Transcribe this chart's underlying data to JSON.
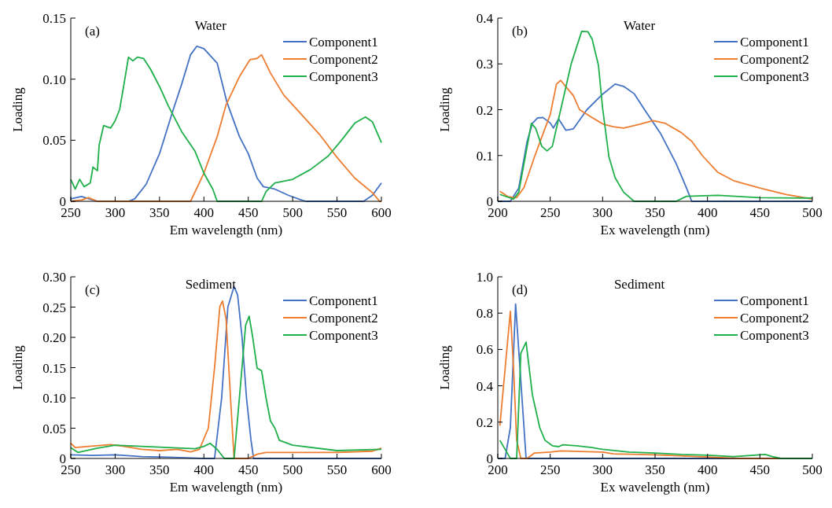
{
  "chart_data": [
    {
      "type": "line",
      "title": "Water",
      "xlabel": "Em wavelength (nm)",
      "ylabel": "Loading",
      "annotations": [
        "(a)"
      ],
      "xlim": [
        250,
        600
      ],
      "xticks": [
        250,
        300,
        350,
        400,
        450,
        500,
        550,
        600
      ],
      "ylim": [
        0,
        0.15
      ],
      "yticks": [
        0,
        0.05,
        {
          "value": 0.1,
          "label": "0.10"
        },
        0.15
      ],
      "grid": false,
      "legend": "top right",
      "series": [
        {
          "name": "Component1",
          "color": "#4472c4",
          "x": [
            250,
            262,
            275,
            280,
            315,
            322,
            335,
            350,
            365,
            375,
            385,
            392,
            400,
            415,
            426,
            440,
            450,
            460,
            467,
            480,
            495,
            510,
            515,
            580,
            590,
            600
          ],
          "values": [
            0.002,
            0.004,
            0.001,
            0,
            0,
            0.002,
            0.014,
            0.039,
            0.074,
            0.096,
            0.12,
            0.127,
            0.125,
            0.113,
            0.081,
            0.053,
            0.039,
            0.019,
            0.012,
            0.01,
            0.005,
            0.001,
            0,
            0,
            0.005,
            0.015
          ]
        },
        {
          "name": "Component2",
          "color": "#ed7d31",
          "x": [
            250,
            262,
            270,
            280,
            385,
            400,
            415,
            425,
            440,
            452,
            460,
            465,
            475,
            490,
            510,
            530,
            550,
            570,
            590,
            598,
            600
          ],
          "values": [
            0,
            0.001,
            0.003,
            0,
            0,
            0.023,
            0.053,
            0.079,
            0.102,
            0.116,
            0.117,
            0.12,
            0.105,
            0.087,
            0.071,
            0.055,
            0.036,
            0.019,
            0.007,
            0,
            0
          ]
        },
        {
          "name": "Component3",
          "color": "#1fb04b",
          "x": [
            250,
            255,
            260,
            265,
            272,
            275,
            280,
            282,
            287,
            295,
            300,
            305,
            310,
            315,
            320,
            325,
            332,
            340,
            350,
            360,
            375,
            390,
            400,
            410,
            415,
            465,
            470,
            480,
            500,
            520,
            540,
            555,
            570,
            582,
            590,
            600
          ],
          "values": [
            0.018,
            0.01,
            0.018,
            0.012,
            0.015,
            0.028,
            0.025,
            0.046,
            0.062,
            0.06,
            0.066,
            0.075,
            0.096,
            0.118,
            0.115,
            0.118,
            0.117,
            0.108,
            0.094,
            0.078,
            0.057,
            0.041,
            0.023,
            0.01,
            0,
            0,
            0.008,
            0.015,
            0.018,
            0.026,
            0.037,
            0.05,
            0.064,
            0.069,
            0.065,
            0.048
          ]
        }
      ]
    },
    {
      "type": "line",
      "title": "Water",
      "xlabel": "Ex wavelength (nm)",
      "ylabel": "Loading",
      "annotations": [
        "(b)"
      ],
      "xlim": [
        200,
        500
      ],
      "xticks": [
        200,
        250,
        300,
        350,
        400,
        450,
        500
      ],
      "ylim": [
        0,
        0.4
      ],
      "yticks": [
        0,
        0.1,
        0.2,
        0.3,
        0.4
      ],
      "grid": false,
      "legend": "top right",
      "series": [
        {
          "name": "Component1",
          "color": "#4472c4",
          "x": [
            200,
            212,
            220,
            228,
            233,
            238,
            243,
            250,
            253,
            258,
            265,
            272,
            285,
            300,
            312,
            320,
            330,
            340,
            355,
            370,
            380,
            385,
            500
          ],
          "values": [
            0,
            0,
            0.029,
            0.131,
            0.17,
            0.182,
            0.183,
            0.171,
            0.16,
            0.18,
            0.155,
            0.158,
            0.2,
            0.234,
            0.256,
            0.251,
            0.235,
            0.2,
            0.149,
            0.083,
            0.029,
            0,
            0
          ]
        },
        {
          "name": "Component2",
          "color": "#ed7d31",
          "x": [
            202,
            210,
            218,
            225,
            235,
            245,
            250,
            256,
            260,
            265,
            272,
            278,
            290,
            300,
            310,
            320,
            335,
            348,
            360,
            375,
            385,
            395,
            410,
            425,
            450,
            475,
            500
          ],
          "values": [
            0.022,
            0.01,
            0.008,
            0.03,
            0.097,
            0.159,
            0.189,
            0.256,
            0.264,
            0.25,
            0.231,
            0.2,
            0.183,
            0.169,
            0.163,
            0.16,
            0.168,
            0.176,
            0.17,
            0.15,
            0.131,
            0.1,
            0.063,
            0.045,
            0.029,
            0.015,
            0.005
          ]
        },
        {
          "name": "Component3",
          "color": "#1fb04b",
          "x": [
            202,
            215,
            220,
            232,
            236,
            242,
            247,
            252,
            260,
            270,
            280,
            286,
            290,
            296,
            300,
            306,
            312,
            320,
            330,
            370,
            380,
            410,
            450,
            500
          ],
          "values": [
            0.015,
            0.005,
            0.02,
            0.17,
            0.16,
            0.12,
            0.11,
            0.12,
            0.2,
            0.3,
            0.371,
            0.37,
            0.354,
            0.297,
            0.203,
            0.097,
            0.051,
            0.02,
            0,
            0,
            0.011,
            0.013,
            0.008,
            0.007
          ]
        }
      ]
    },
    {
      "type": "line",
      "title": "Sediment",
      "xlabel": "Em wavelength (nm)",
      "ylabel": "Loading",
      "annotations": [
        "(c)"
      ],
      "xlim": [
        250,
        600
      ],
      "xticks": [
        250,
        300,
        350,
        400,
        450,
        500,
        550,
        600
      ],
      "ylim": [
        0,
        0.3
      ],
      "yticks": [
        0,
        0.05,
        {
          "value": 0.1,
          "label": "0.10"
        },
        0.15,
        {
          "value": 0.2,
          "label": "0.20"
        },
        0.25,
        {
          "value": 0.3,
          "label": "0.30"
        }
      ],
      "grid": false,
      "legend": "top right",
      "series": [
        {
          "name": "Component1",
          "color": "#4472c4",
          "x": [
            250,
            275,
            300,
            330,
            360,
            400,
            412,
            420,
            427,
            434,
            438,
            443,
            448,
            453,
            456,
            600
          ],
          "values": [
            0.006,
            0.005,
            0.006,
            0.003,
            0.002,
            0,
            0,
            0.1,
            0.25,
            0.284,
            0.27,
            0.2,
            0.1,
            0.031,
            0,
            0
          ]
        },
        {
          "name": "Component2",
          "color": "#ed7d31",
          "x": [
            250,
            255,
            270,
            295,
            310,
            330,
            350,
            370,
            385,
            395,
            405,
            412,
            418,
            421,
            425,
            430,
            434,
            450,
            460,
            470,
            500,
            550,
            590,
            600
          ],
          "values": [
            0.025,
            0.018,
            0.02,
            0.023,
            0.02,
            0.015,
            0.013,
            0.015,
            0.011,
            0.015,
            0.05,
            0.15,
            0.251,
            0.26,
            0.23,
            0.1,
            0,
            0,
            0.007,
            0.01,
            0.01,
            0.01,
            0.012,
            0.017
          ]
        },
        {
          "name": "Component3",
          "color": "#1fb04b",
          "x": [
            250,
            258,
            280,
            300,
            330,
            360,
            390,
            400,
            407,
            415,
            423,
            434,
            440,
            447,
            451,
            455,
            460,
            465,
            470,
            475,
            480,
            485,
            500,
            550,
            600
          ],
          "values": [
            0.018,
            0.01,
            0.017,
            0.022,
            0.02,
            0.018,
            0.016,
            0.02,
            0.025,
            0.015,
            0,
            0,
            0.1,
            0.22,
            0.235,
            0.2,
            0.149,
            0.145,
            0.1,
            0.062,
            0.05,
            0.03,
            0.022,
            0.013,
            0.015
          ]
        }
      ]
    },
    {
      "type": "line",
      "title": "Sediment",
      "xlabel": "Ex wavelength (nm)",
      "ylabel": "Loading",
      "annotations": [
        "(d)"
      ],
      "xlim": [
        200,
        500
      ],
      "xticks": [
        200,
        250,
        300,
        350,
        400,
        450,
        500
      ],
      "ylim": [
        0,
        1
      ],
      "yticks": [
        0,
        0.2,
        0.4,
        0.6,
        0.8,
        {
          "value": 1,
          "label": "1.0"
        }
      ],
      "grid": false,
      "legend": "top right",
      "series": [
        {
          "name": "Component1",
          "color": "#4472c4",
          "x": [
            200,
            207,
            212,
            217,
            227,
            500
          ],
          "values": [
            0,
            0,
            0.17,
            0.85,
            0,
            0
          ]
        },
        {
          "name": "Component2",
          "color": "#ed7d31",
          "x": [
            202,
            212,
            215,
            218,
            222,
            228,
            235,
            250,
            260,
            300,
            310,
            350,
            400,
            430,
            470,
            500
          ],
          "values": [
            0.18,
            0.81,
            0.5,
            0.1,
            0,
            0,
            0.03,
            0.035,
            0.042,
            0.035,
            0.025,
            0.02,
            0.008,
            0,
            0,
            0
          ]
        },
        {
          "name": "Component3",
          "color": "#1fb04b",
          "x": [
            202,
            210,
            212,
            218,
            222,
            227,
            233,
            240,
            245,
            252,
            258,
            262,
            275,
            290,
            300,
            325,
            350,
            375,
            400,
            425,
            450,
            455,
            462,
            470,
            500
          ],
          "values": [
            0.1,
            0.02,
            0,
            0,
            0.58,
            0.64,
            0.35,
            0.17,
            0.1,
            0.07,
            0.065,
            0.075,
            0.07,
            0.06,
            0.05,
            0.035,
            0.03,
            0.022,
            0.018,
            0.01,
            0.02,
            0.022,
            0.01,
            0,
            0
          ]
        }
      ]
    }
  ]
}
